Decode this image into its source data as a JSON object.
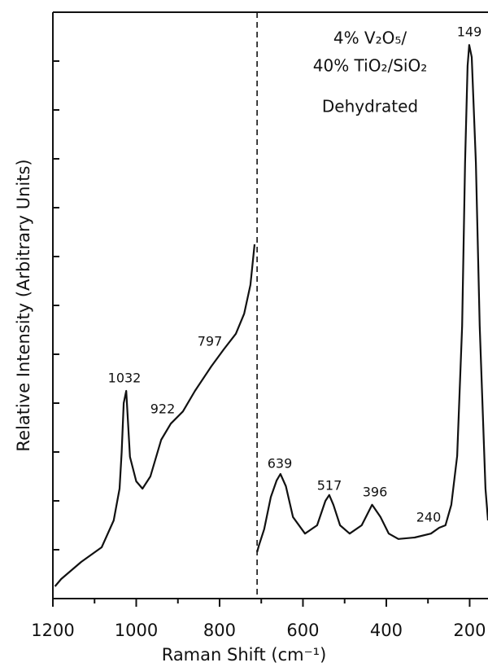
{
  "chart_data": {
    "type": "line",
    "xlabel": "Raman Shift (cm⁻¹)",
    "ylabel": "Relative Intensity (Arbitrary Units)",
    "sample_lines": [
      "4% V₂O₅/",
      "40% TiO₂/SiO₂",
      "Dehydrated"
    ],
    "annotations": [
      "1032",
      "922",
      "797",
      "639",
      "517",
      "396",
      "240",
      "149"
    ],
    "xlim": [
      1200,
      156
    ],
    "xticks": [
      1200,
      1000,
      800,
      600,
      400,
      200
    ],
    "xminorticks": [
      1100,
      900,
      700,
      500,
      300
    ],
    "ylim": [
      0,
      12
    ],
    "yticks": [
      1,
      2,
      3,
      4,
      5,
      6,
      7,
      8,
      9,
      10,
      11
    ],
    "divider_x": 710,
    "color": "#111111",
    "series": [
      {
        "x": [
          1195,
          1180,
          1132,
          1083,
          1054,
          1040,
          1035,
          1030,
          1024,
          1015,
          1000,
          985,
          966,
          940,
          917,
          888,
          859,
          820,
          790,
          761,
          741,
          726,
          716
        ],
        "values": [
          0.25,
          0.4,
          0.75,
          1.05,
          1.6,
          2.25,
          3.0,
          4.0,
          4.25,
          2.9,
          2.4,
          2.25,
          2.5,
          3.25,
          3.58,
          3.83,
          4.25,
          4.75,
          5.1,
          5.42,
          5.83,
          6.42,
          7.25
        ]
      },
      {
        "x": [
          710,
          706,
          693,
          677,
          663,
          654,
          641,
          624,
          595,
          566,
          546,
          537,
          527,
          511,
          488,
          459,
          434,
          414,
          394,
          371,
          332,
          293,
          273,
          258,
          244,
          230,
          218,
          211,
          205,
          201,
          195,
          185,
          176,
          162,
          156
        ],
        "values": [
          0.95,
          1.08,
          1.42,
          2.08,
          2.42,
          2.55,
          2.3,
          1.67,
          1.33,
          1.5,
          2.0,
          2.12,
          1.92,
          1.5,
          1.33,
          1.5,
          1.92,
          1.67,
          1.33,
          1.22,
          1.25,
          1.33,
          1.45,
          1.5,
          1.92,
          2.92,
          5.58,
          8.92,
          10.9,
          11.33,
          11.08,
          8.92,
          5.58,
          2.25,
          1.6
        ]
      }
    ]
  }
}
